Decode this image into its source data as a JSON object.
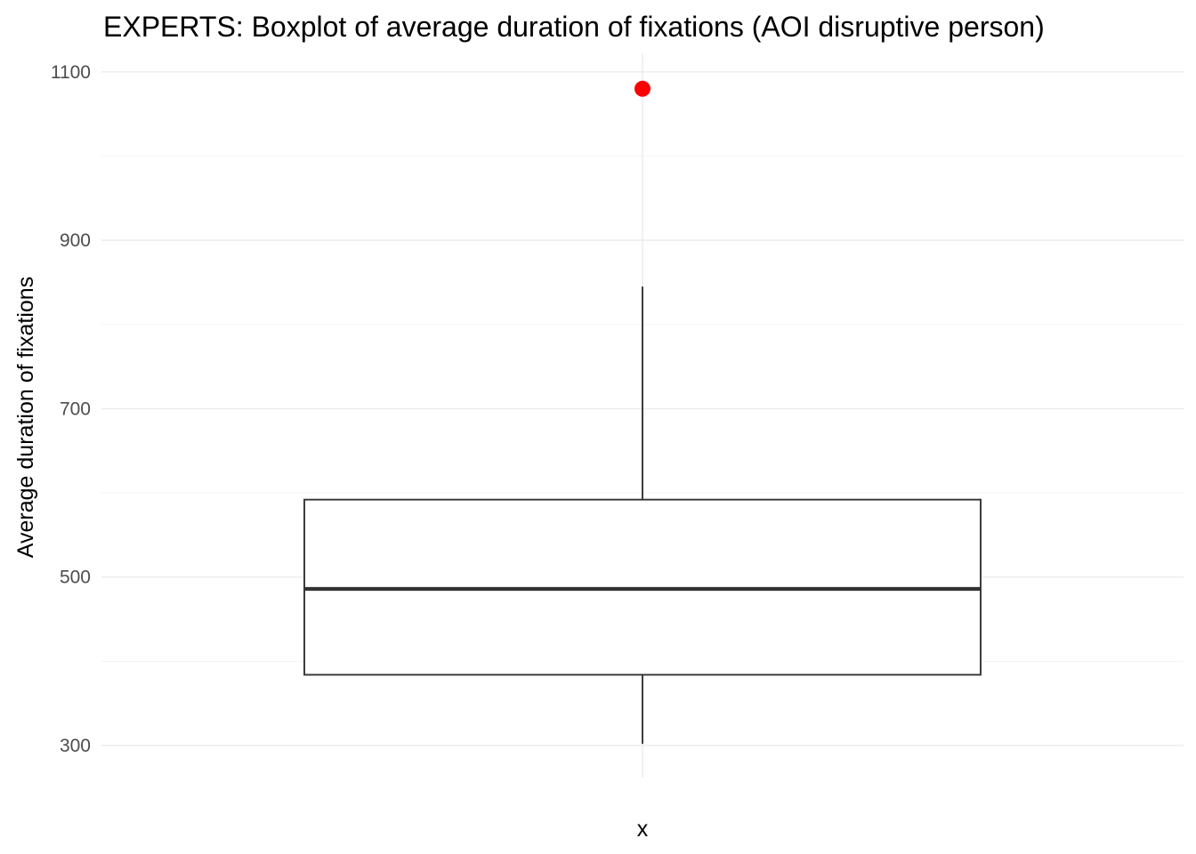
{
  "chart_data": {
    "type": "boxplot",
    "title": "EXPERTS: Boxplot of average duration of fixations (AOI disruptive person)",
    "xlabel": "x",
    "ylabel": "Average duration of fixations",
    "x_categories": [
      ""
    ],
    "yticks": [
      300,
      500,
      700,
      900,
      1100
    ],
    "yminor": [
      400,
      600,
      800,
      1000
    ],
    "ylim": [
      262,
      1122
    ],
    "grid": true,
    "legend": "none",
    "boxes": [
      {
        "category": "",
        "whisker_low": 302,
        "q1": 384,
        "median": 486,
        "q3": 592,
        "whisker_high": 845,
        "outliers": [
          1080
        ]
      }
    ],
    "colors": {
      "box_stroke": "#333333",
      "median": "#333333",
      "outlier": "#ff0000",
      "grid": "#ebebeb"
    }
  }
}
